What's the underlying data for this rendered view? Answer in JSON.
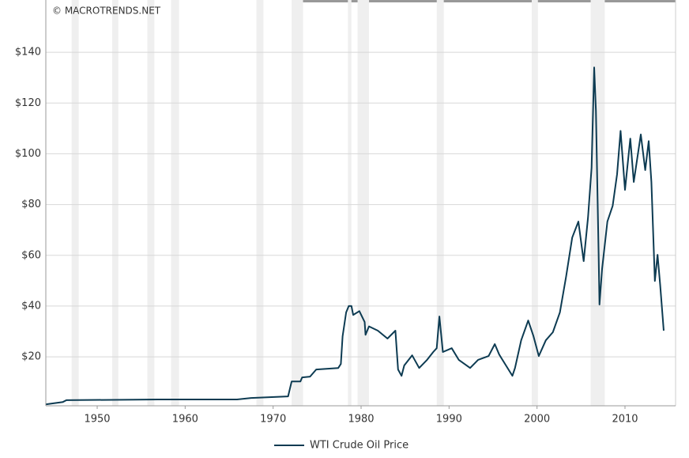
{
  "chart_data": {
    "type": "line",
    "watermark": "© MACROTRENDS.NET",
    "x": [
      1944.2,
      1946.1,
      1946.5,
      1956.9,
      1965.9,
      1967.5,
      1971.7,
      1972.1,
      1973.1,
      1973.3,
      1974.2,
      1974.9,
      1977.4,
      1977.7,
      1977.9,
      1978.3,
      1978.6,
      1978.9,
      1979.1,
      1979.8,
      1980.4,
      1980.5,
      1980.9,
      1981.9,
      1983.0,
      1983.9,
      1984.2,
      1984.6,
      1984.9,
      1985.8,
      1986.6,
      1987.5,
      1988.2,
      1988.6,
      1988.9,
      1989.3,
      1990.3,
      1991.1,
      1992.4,
      1993.3,
      1994.5,
      1995.2,
      1995.7,
      1997.2,
      1997.5,
      1998.2,
      1999.0,
      1999.6,
      2000.2,
      2001.0,
      2001.8,
      2002.6,
      2003.3,
      2004.0,
      2004.7,
      2005.3,
      2005.8,
      2006.2,
      2006.5,
      2006.7,
      2007.0,
      2007.1,
      2007.4,
      2008.0,
      2008.6,
      2009.1,
      2009.5,
      2010.0,
      2010.6,
      2011.0,
      2011.8,
      2012.3,
      2012.7,
      2013.0,
      2013.4,
      2013.7,
      2014.0,
      2014.4
    ],
    "series": [
      {
        "name": "WTI Crude Oil Price",
        "color": "#0d3b52",
        "values": [
          1.3,
          2.2,
          2.9,
          3.2,
          3.2,
          3.8,
          4.4,
          10.3,
          10.3,
          11.9,
          12.2,
          15.0,
          15.6,
          17.2,
          28.1,
          37.5,
          40,
          40,
          36.5,
          38,
          33.7,
          28.7,
          32,
          30.3,
          27.2,
          30.3,
          15,
          12.5,
          16.6,
          20.6,
          15.6,
          18.8,
          21.9,
          23.4,
          35.9,
          21.9,
          23.4,
          18.8,
          15.6,
          18.8,
          20.3,
          25,
          20.9,
          12.5,
          15.6,
          26.5,
          34.3,
          28.1,
          20.3,
          26.5,
          29.7,
          37.5,
          51.5,
          67,
          73.3,
          57.7,
          74.9,
          94.5,
          134,
          117,
          60.8,
          40.6,
          54.6,
          73.3,
          79.5,
          92,
          109,
          85.8,
          106,
          88.9,
          107.6,
          93.6,
          105,
          88.9,
          49.9,
          60.2,
          48.4,
          30.3
        ]
      }
    ],
    "recessions": [
      [
        1947.1,
        1947.9
      ],
      [
        1951.7,
        1952.4
      ],
      [
        1955.7,
        1956.5
      ],
      [
        1958.4,
        1959.3
      ],
      [
        1968.1,
        1968.9
      ],
      [
        1972.1,
        1973.4
      ],
      [
        1978.5,
        1978.9
      ],
      [
        1979.6,
        1980.9
      ],
      [
        1988.6,
        1989.4
      ],
      [
        1999.4,
        2000.1
      ],
      [
        2006.1,
        2007.7
      ]
    ],
    "recession_color": "#efefef",
    "xlim": [
      1944.16,
      2015.75
    ],
    "xticks": [
      1950,
      1960,
      1970,
      1980,
      1990,
      2000,
      2010
    ],
    "ylim": [
      0.7,
      160.6
    ],
    "yticks": [
      {
        "value": 20,
        "label": "$20"
      },
      {
        "value": 40,
        "label": "$40"
      },
      {
        "value": 60,
        "label": "$60"
      },
      {
        "value": 80,
        "label": "$80"
      },
      {
        "value": 100,
        "label": "$100"
      },
      {
        "value": 120,
        "label": "$120"
      },
      {
        "value": 140,
        "label": "$140"
      }
    ],
    "grid": true,
    "legend": "bottom"
  }
}
